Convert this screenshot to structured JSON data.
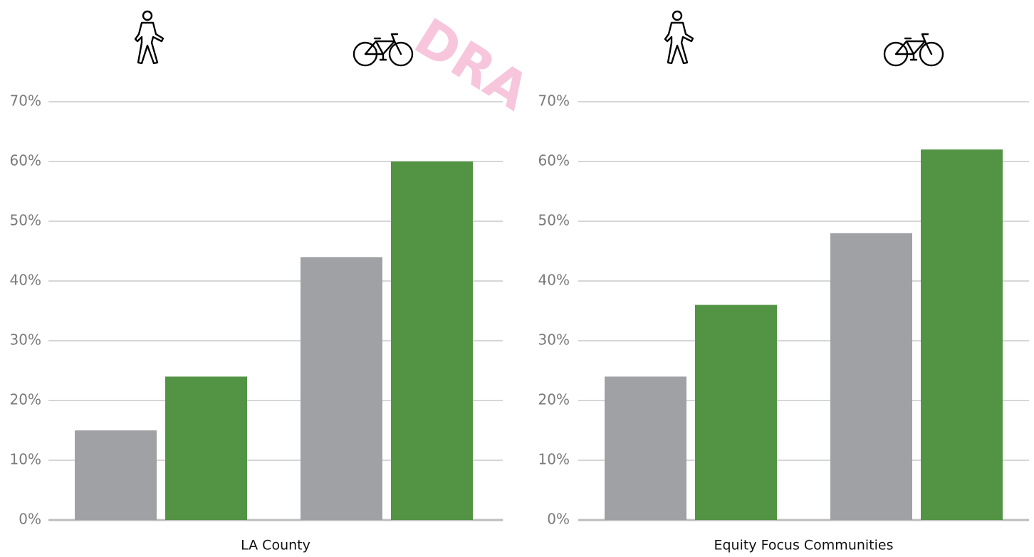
{
  "chart_data": [
    {
      "type": "bar",
      "categories": [
        null,
        null
      ],
      "series": [
        {
          "color": "#a0a1a4",
          "values": [
            15,
            44
          ]
        },
        {
          "color": "#529444",
          "values": [
            24,
            60
          ]
        }
      ],
      "ylim": [
        0,
        70
      ],
      "yticks": [
        {
          "value": 0,
          "label": "0%"
        },
        {
          "value": 10,
          "label": "10%"
        },
        {
          "value": 20,
          "label": "20%"
        },
        {
          "value": 30,
          "label": "30%"
        },
        {
          "value": 40,
          "label": "40%"
        },
        {
          "value": 50,
          "label": "50%"
        },
        {
          "value": 60,
          "label": "60%"
        },
        {
          "value": 70,
          "label": "70%"
        }
      ],
      "xlabel": "LA County",
      "grid": true
    },
    {
      "type": "bar",
      "categories": [
        null,
        null
      ],
      "series": [
        {
          "color": "#a0a1a4",
          "values": [
            24,
            48
          ]
        },
        {
          "color": "#529444",
          "values": [
            36,
            62
          ]
        }
      ],
      "ylim": [
        0,
        70
      ],
      "yticks": [
        {
          "value": 0,
          "label": "0%"
        },
        {
          "value": 10,
          "label": "10%"
        },
        {
          "value": 20,
          "label": "20%"
        },
        {
          "value": 30,
          "label": "30%"
        },
        {
          "value": 40,
          "label": "40%"
        },
        {
          "value": 50,
          "label": "50%"
        },
        {
          "value": 60,
          "label": "60%"
        },
        {
          "value": 70,
          "label": "70%"
        }
      ],
      "xlabel": "Equity Focus Communities",
      "grid": true
    }
  ],
  "watermark": "DRA"
}
